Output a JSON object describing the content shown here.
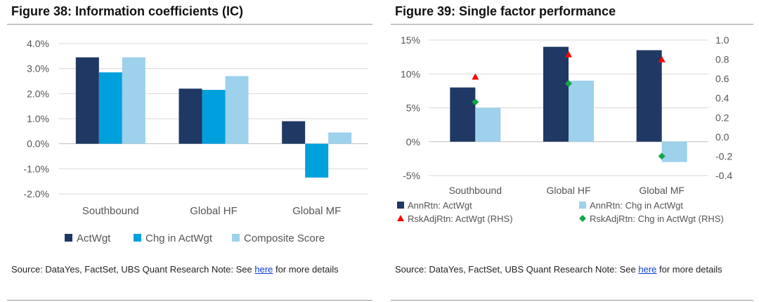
{
  "fig38": {
    "title": "Figure 38: Information coefficients (IC)",
    "source_prefix": "Source: DataYes, FactSet, UBS Quant Research Note: See ",
    "source_link": "here",
    "source_suffix": " for more details"
  },
  "fig39": {
    "title": "Figure 39: Single factor performance",
    "source_prefix": "Source: DataYes, FactSet, UBS Quant Research Note: See ",
    "source_link": "here",
    "source_suffix": " for more details"
  },
  "colors": {
    "navy": "#1f3864",
    "blue": "#00a0dc",
    "light_blue": "#9dd1ec",
    "red": "#ff0000",
    "green": "#11a84a"
  },
  "chart_data": [
    {
      "type": "bar",
      "title": "",
      "categories": [
        "Southbound",
        "Global HF",
        "Global MF"
      ],
      "series": [
        {
          "name": "ActWgt",
          "values": [
            3.45,
            2.2,
            0.9
          ],
          "color": "#1f3864"
        },
        {
          "name": "Chg in ActWgt",
          "values": [
            2.85,
            2.15,
            -1.35
          ],
          "color": "#00a0dc"
        },
        {
          "name": "Composite Score",
          "values": [
            3.45,
            2.7,
            0.45
          ],
          "color": "#9dd1ec"
        }
      ],
      "ylim": [
        -2.0,
        4.0
      ],
      "yticks": [
        "4.0%",
        "3.0%",
        "2.0%",
        "1.0%",
        "0.0%",
        "-1.0%",
        "-2.0%"
      ],
      "grid": true,
      "legend": "bottom"
    },
    {
      "type": "bar",
      "title": "",
      "categories": [
        "Southbound",
        "Global HF",
        "Global MF"
      ],
      "series": [
        {
          "name": "AnnRtn: ActWgt",
          "values": [
            8.0,
            14.0,
            13.5
          ],
          "color": "#1f3864",
          "axis": "left"
        },
        {
          "name": "AnnRtn: Chg in ActWgt",
          "values": [
            5.0,
            9.0,
            -3.0
          ],
          "color": "#9dd1ec",
          "axis": "left"
        },
        {
          "name": "RskAdjRtn: ActWgt (RHS)",
          "values": [
            0.62,
            0.85,
            0.8
          ],
          "color": "#ff0000",
          "marker": "triangle",
          "axis": "right"
        },
        {
          "name": "RskAdjRtn: Chg in ActWgt (RHS)",
          "values": [
            0.36,
            0.55,
            -0.2
          ],
          "color": "#11a84a",
          "marker": "diamond",
          "axis": "right"
        }
      ],
      "ylim": [
        -5,
        15
      ],
      "yticks": [
        "15%",
        "10%",
        "5%",
        "0%",
        "-5%"
      ],
      "y2lim": [
        -0.4,
        1.0
      ],
      "y2ticks": [
        "1.0",
        "0.8",
        "0.6",
        "0.4",
        "0.2",
        "0.0",
        "-0.2",
        "-0.4"
      ],
      "grid": true,
      "legend": "bottom"
    }
  ]
}
